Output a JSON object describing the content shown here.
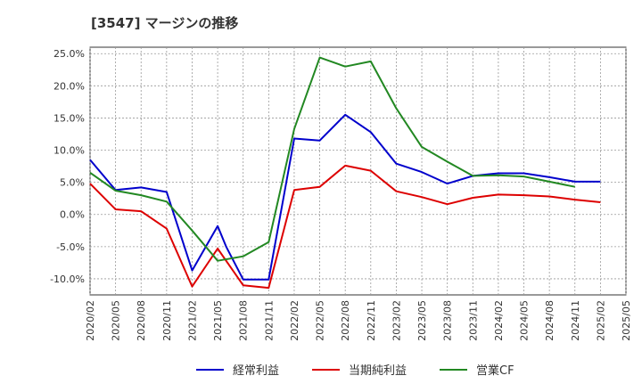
{
  "chart_data": {
    "type": "line",
    "title": "[3547]  マージンの推移",
    "xlabel": "",
    "ylabel": "",
    "x_ticks": [
      "2020/02",
      "2020/05",
      "2020/08",
      "2020/11",
      "2021/02",
      "2021/05",
      "2021/08",
      "2021/11",
      "2022/02",
      "2022/05",
      "2022/08",
      "2022/11",
      "2023/02",
      "2023/05",
      "2023/08",
      "2023/11",
      "2024/02",
      "2024/05",
      "2024/08",
      "2024/11",
      "2025/02",
      "2025/05"
    ],
    "y_ticks": [
      25,
      20,
      15,
      10,
      5,
      0,
      -5,
      -10
    ],
    "y_tick_labels": [
      "25.0%",
      "20.0%",
      "15.0%",
      "10.0%",
      "5.0%",
      "0.0%",
      "-5.0%",
      "-10.0%"
    ],
    "ylim": [
      -12.5,
      26
    ],
    "grid": true,
    "legend_position": "bottom",
    "series": [
      {
        "name": "経常利益",
        "color": "#0000cc",
        "points": [
          [
            "2020/02",
            8.5
          ],
          [
            "2020/05",
            3.8
          ],
          [
            "2020/08",
            4.2
          ],
          [
            "2020/11",
            3.5
          ],
          [
            "2021/02",
            -8.7
          ],
          [
            "2021/05",
            -1.8
          ],
          [
            "2021/06",
            -5.0
          ],
          [
            "2021/08",
            -10.1
          ],
          [
            "2021/11",
            -10.1
          ],
          [
            "2022/02",
            11.8
          ],
          [
            "2022/05",
            11.5
          ],
          [
            "2022/08",
            15.5
          ],
          [
            "2022/11",
            12.8
          ],
          [
            "2023/02",
            7.9
          ],
          [
            "2023/05",
            6.6
          ],
          [
            "2023/08",
            4.8
          ],
          [
            "2023/11",
            6.0
          ],
          [
            "2024/02",
            6.4
          ],
          [
            "2024/05",
            6.4
          ],
          [
            "2024/08",
            5.8
          ],
          [
            "2024/11",
            5.1
          ],
          [
            "2025/02",
            5.1
          ]
        ]
      },
      {
        "name": "当期純利益",
        "color": "#dd0000",
        "points": [
          [
            "2020/02",
            4.8
          ],
          [
            "2020/05",
            0.8
          ],
          [
            "2020/08",
            0.5
          ],
          [
            "2020/11",
            -2.2
          ],
          [
            "2021/02",
            -11.2
          ],
          [
            "2021/05",
            -5.3
          ],
          [
            "2021/08",
            -11.0
          ],
          [
            "2021/11",
            -11.4
          ],
          [
            "2022/02",
            3.8
          ],
          [
            "2022/05",
            4.3
          ],
          [
            "2022/08",
            7.6
          ],
          [
            "2022/11",
            6.8
          ],
          [
            "2023/02",
            3.6
          ],
          [
            "2023/05",
            2.7
          ],
          [
            "2023/08",
            1.6
          ],
          [
            "2023/11",
            2.6
          ],
          [
            "2024/02",
            3.1
          ],
          [
            "2024/05",
            3.0
          ],
          [
            "2024/08",
            2.8
          ],
          [
            "2024/11",
            2.3
          ],
          [
            "2025/02",
            1.9
          ]
        ]
      },
      {
        "name": "営業CF",
        "color": "#228822",
        "points": [
          [
            "2020/02",
            6.5
          ],
          [
            "2020/05",
            3.7
          ],
          [
            "2020/08",
            3.0
          ],
          [
            "2020/11",
            2.0
          ],
          [
            "2021/02",
            -2.5
          ],
          [
            "2021/05",
            -7.2
          ],
          [
            "2021/08",
            -6.5
          ],
          [
            "2021/11",
            -4.3
          ],
          [
            "2022/02",
            13.3
          ],
          [
            "2022/05",
            24.4
          ],
          [
            "2022/08",
            23.0
          ],
          [
            "2022/11",
            23.8
          ],
          [
            "2023/02",
            16.5
          ],
          [
            "2023/05",
            10.5
          ],
          [
            "2023/08",
            8.2
          ],
          [
            "2023/11",
            6.0
          ],
          [
            "2024/02",
            6.1
          ],
          [
            "2024/05",
            5.9
          ],
          [
            "2024/08",
            5.1
          ],
          [
            "2024/11",
            4.3
          ]
        ]
      }
    ]
  }
}
